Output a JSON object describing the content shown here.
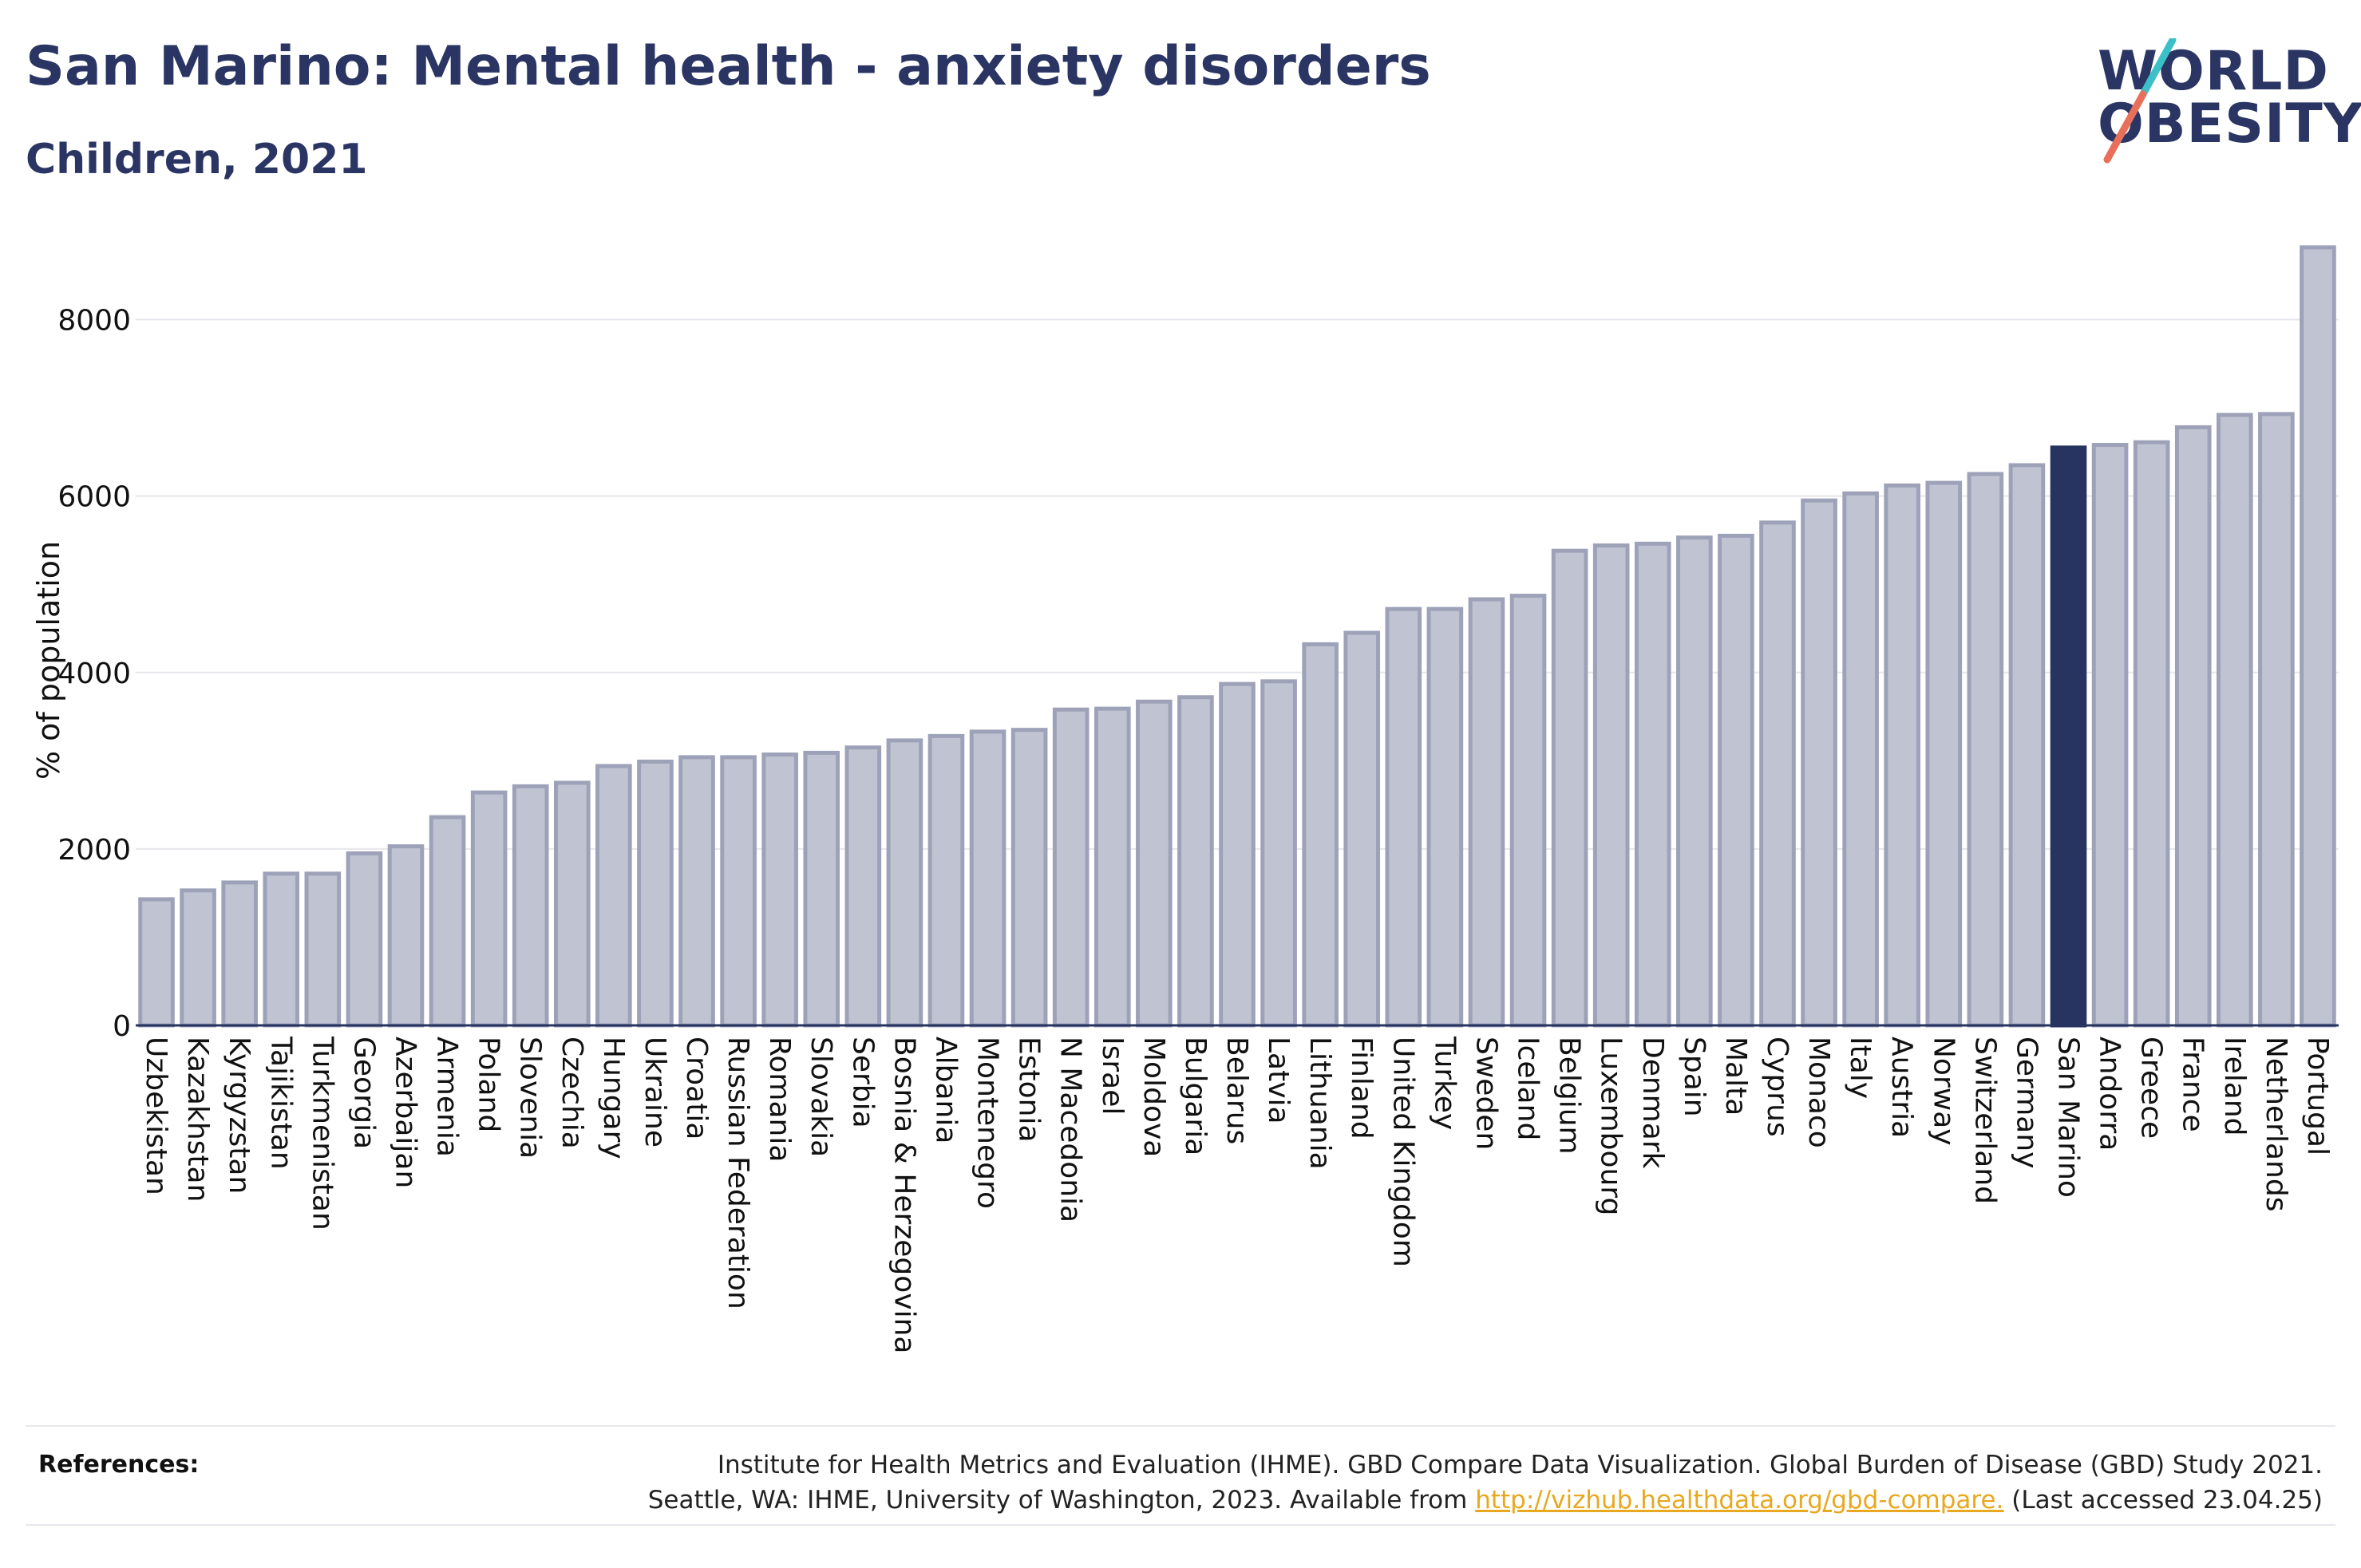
{
  "title": "San Marino: Mental health - anxiety disorders",
  "subtitle": "Children, 2021",
  "logo": {
    "line1": "WORLD",
    "line2": "OBESITY",
    "slash_colors": [
      "#3cc0c8",
      "#e8705a"
    ]
  },
  "references": {
    "label": "References:",
    "text_line1": "Institute for Health Metrics and Evaluation (IHME). GBD Compare Data Visualization. Global Burden of Disease (GBD) Study 2021.",
    "text_line2_before": "Seattle, WA: IHME, University of Washington, 2023. Available from ",
    "link": "http://vizhub.healthdata.org/gbd-compare.",
    "text_line2_after": " (Last accessed 23.04.25)"
  },
  "colors": {
    "bar": "#c0c4d2",
    "bar_edge": "#9da2b9",
    "highlight": "#283460",
    "grid": "#e6e7ec",
    "axis": "#283460"
  },
  "chart_data": {
    "type": "bar",
    "title": "San Marino: Mental health - anxiety disorders",
    "subtitle": "Children, 2021",
    "ylabel": "% of population",
    "xlabel": "",
    "ylim": [
      0,
      9000
    ],
    "yticks": [
      0,
      2000,
      4000,
      6000,
      8000
    ],
    "grid": true,
    "highlight": "San Marino",
    "categories": [
      "Uzbekistan",
      "Kazakhstan",
      "Kyrgyzstan",
      "Tajikistan",
      "Turkmenistan",
      "Georgia",
      "Azerbaijan",
      "Armenia",
      "Poland",
      "Slovenia",
      "Czechia",
      "Hungary",
      "Ukraine",
      "Croatia",
      "Russian Federation",
      "Romania",
      "Slovakia",
      "Serbia",
      "Bosnia & Herzegovina",
      "Albania",
      "Montenegro",
      "Estonia",
      "N Macedonia",
      "Israel",
      "Moldova",
      "Bulgaria",
      "Belarus",
      "Latvia",
      "Lithuania",
      "Finland",
      "United Kingdom",
      "Turkey",
      "Sweden",
      "Iceland",
      "Belgium",
      "Luxembourg",
      "Denmark",
      "Spain",
      "Malta",
      "Cyprus",
      "Monaco",
      "Italy",
      "Austria",
      "Norway",
      "Switzerland",
      "Germany",
      "San Marino",
      "Andorra",
      "Greece",
      "France",
      "Ireland",
      "Netherlands",
      "Portugal"
    ],
    "values": [
      1430,
      1530,
      1620,
      1720,
      1720,
      1950,
      2030,
      2360,
      2640,
      2710,
      2750,
      2940,
      2990,
      3040,
      3040,
      3070,
      3090,
      3150,
      3230,
      3280,
      3330,
      3350,
      3580,
      3590,
      3670,
      3720,
      3870,
      3900,
      4320,
      4450,
      4720,
      4720,
      4830,
      4870,
      5380,
      5440,
      5460,
      5530,
      5550,
      5700,
      5950,
      6030,
      6120,
      6150,
      6250,
      6350,
      6550,
      6580,
      6610,
      6780,
      6920,
      6930,
      8820
    ]
  }
}
